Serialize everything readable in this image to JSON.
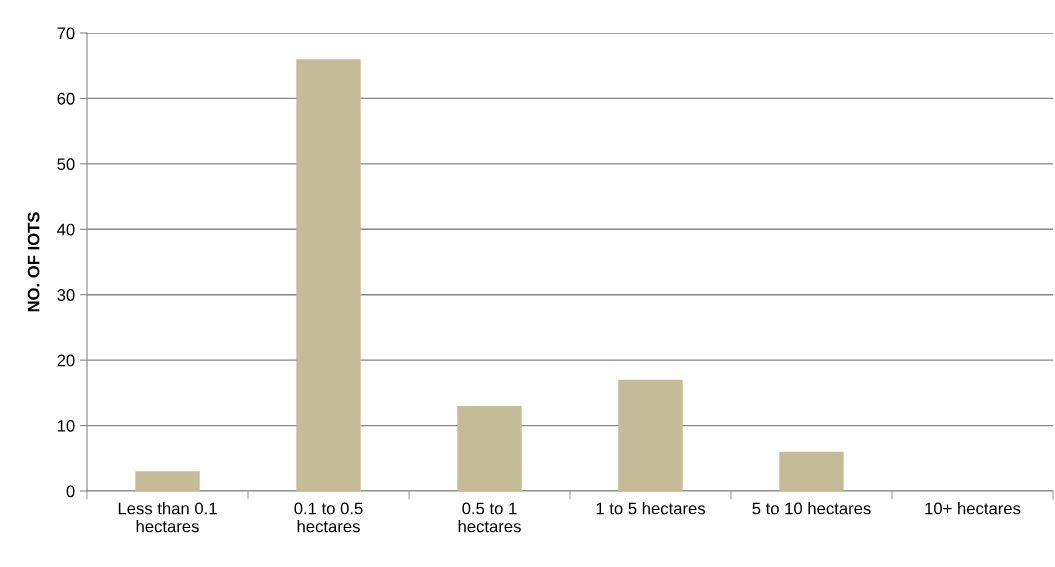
{
  "chart_data": {
    "type": "bar",
    "ylabel": "NO. OF IOTS",
    "categories": [
      "Less than 0.1\nhectares",
      "0.1 to 0.5\nhectares",
      "0.5 to 1\nhectares",
      "1 to 5 hectares",
      "5 to 10 hectares",
      "10+ hectares"
    ],
    "values": [
      3,
      66,
      13,
      17,
      6,
      0
    ],
    "color": "#c4bc96",
    "ylim": [
      0,
      70
    ],
    "yticks": [
      0,
      10,
      20,
      30,
      40,
      50,
      60,
      70
    ],
    "grid": "y",
    "legend": false
  }
}
